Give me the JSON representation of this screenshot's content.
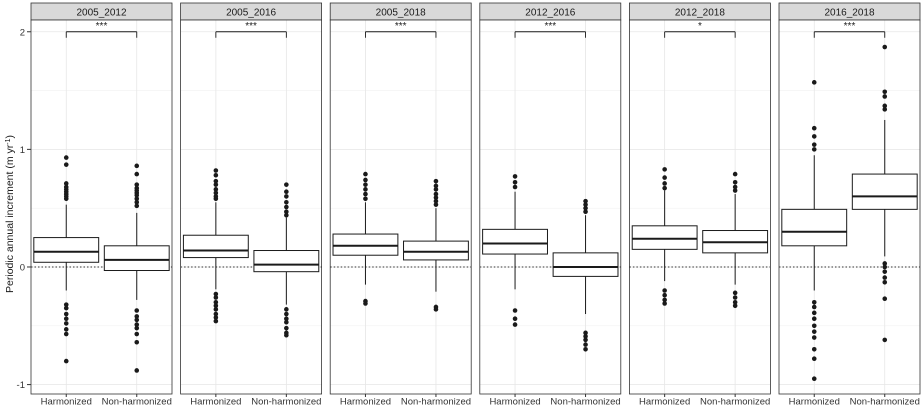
{
  "chart_data": {
    "type": "boxplot",
    "ylabel": "Periodic annual increment (m yr",
    "ylabel_sup": "-1",
    "ylabel_close": ")",
    "ylim": [
      -1.08,
      2.1
    ],
    "yticks": [
      -1,
      0,
      1,
      2
    ],
    "ytick_labels": [
      "-1",
      "0",
      "1",
      "2"
    ],
    "reference_line_y": 0,
    "grid": true,
    "categories": [
      "Harmonized",
      "Non-harmonized"
    ],
    "panels": [
      {
        "title": "2005_2012",
        "significance": "***",
        "boxes": [
          {
            "category": "Harmonized",
            "min": -0.2,
            "q1": 0.04,
            "median": 0.13,
            "q3": 0.25,
            "max": 0.53,
            "outliers": [
              0.93,
              0.87,
              0.71,
              0.68,
              0.66,
              0.64,
              0.62,
              0.6,
              0.58,
              -0.32,
              -0.35,
              -0.4,
              -0.44,
              -0.48,
              -0.53,
              -0.57,
              -0.8
            ]
          },
          {
            "category": "Non-harmonized",
            "min": -0.28,
            "q1": -0.03,
            "median": 0.06,
            "q3": 0.18,
            "max": 0.46,
            "outliers": [
              0.86,
              0.79,
              0.7,
              0.67,
              0.65,
              0.63,
              0.61,
              0.58,
              0.55,
              0.52,
              -0.37,
              -0.42,
              -0.45,
              -0.49,
              -0.52,
              -0.57,
              -0.64,
              -0.88
            ]
          }
        ]
      },
      {
        "title": "2005_2016",
        "significance": "***",
        "boxes": [
          {
            "category": "Harmonized",
            "min": -0.19,
            "q1": 0.08,
            "median": 0.14,
            "q3": 0.27,
            "max": 0.55,
            "outliers": [
              0.82,
              0.78,
              0.73,
              0.7,
              0.66,
              0.63,
              0.6,
              0.58,
              -0.23,
              -0.26,
              -0.3,
              -0.33,
              -0.36,
              -0.4,
              -0.43,
              -0.46
            ]
          },
          {
            "category": "Non-harmonized",
            "min": -0.32,
            "q1": -0.04,
            "median": 0.02,
            "q3": 0.14,
            "max": 0.42,
            "outliers": [
              0.7,
              0.64,
              0.6,
              0.55,
              0.51,
              0.47,
              0.44,
              -0.36,
              -0.4,
              -0.44,
              -0.47,
              -0.52,
              -0.56,
              -0.58
            ]
          }
        ]
      },
      {
        "title": "2005_2018",
        "significance": "***",
        "boxes": [
          {
            "category": "Harmonized",
            "min": -0.15,
            "q1": 0.1,
            "median": 0.18,
            "q3": 0.28,
            "max": 0.55,
            "outliers": [
              0.79,
              0.74,
              0.7,
              0.66,
              0.62,
              0.58,
              -0.29,
              -0.31
            ]
          },
          {
            "category": "Non-harmonized",
            "min": -0.21,
            "q1": 0.06,
            "median": 0.13,
            "q3": 0.22,
            "max": 0.5,
            "outliers": [
              0.73,
              0.69,
              0.66,
              0.62,
              0.59,
              0.56,
              0.53,
              -0.34,
              -0.36
            ]
          }
        ]
      },
      {
        "title": "2012_2016",
        "significance": "***",
        "boxes": [
          {
            "category": "Harmonized",
            "min": -0.19,
            "q1": 0.11,
            "median": 0.2,
            "q3": 0.32,
            "max": 0.64,
            "outliers": [
              0.77,
              0.72,
              0.68,
              -0.37,
              -0.44,
              -0.49
            ]
          },
          {
            "category": "Non-harmonized",
            "min": -0.4,
            "q1": -0.08,
            "median": 0.0,
            "q3": 0.12,
            "max": 0.44,
            "outliers": [
              0.56,
              0.53,
              0.5,
              0.47,
              -0.56,
              -0.59,
              -0.62,
              -0.66,
              -0.7
            ]
          }
        ]
      },
      {
        "title": "2012_2018",
        "significance": "*",
        "boxes": [
          {
            "category": "Harmonized",
            "min": -0.12,
            "q1": 0.15,
            "median": 0.24,
            "q3": 0.35,
            "max": 0.65,
            "outliers": [
              0.83,
              0.76,
              0.71,
              0.67,
              -0.2,
              -0.24,
              -0.28,
              -0.31
            ]
          },
          {
            "category": "Non-harmonized",
            "min": -0.15,
            "q1": 0.12,
            "median": 0.21,
            "q3": 0.31,
            "max": 0.62,
            "outliers": [
              0.79,
              0.72,
              0.68,
              0.65,
              -0.22,
              -0.26,
              -0.3,
              -0.33
            ]
          }
        ]
      },
      {
        "title": "2016_2018",
        "significance": "***",
        "boxes": [
          {
            "category": "Harmonized",
            "min": -0.2,
            "q1": 0.18,
            "median": 0.3,
            "q3": 0.49,
            "max": 0.95,
            "outliers": [
              1.57,
              1.18,
              1.11,
              1.04,
              1.0,
              -0.3,
              -0.34,
              -0.39,
              -0.44,
              -0.5,
              -0.55,
              -0.6,
              -0.7,
              -0.78,
              -0.95
            ]
          },
          {
            "category": "Non-harmonized",
            "min": 0.09,
            "q1": 0.49,
            "median": 0.6,
            "q3": 0.79,
            "max": 1.25,
            "outliers": [
              1.87,
              1.49,
              1.45,
              1.37,
              1.34,
              0.03,
              0.0,
              -0.04,
              -0.09,
              -0.13,
              -0.27,
              -0.62
            ]
          }
        ]
      }
    ]
  }
}
